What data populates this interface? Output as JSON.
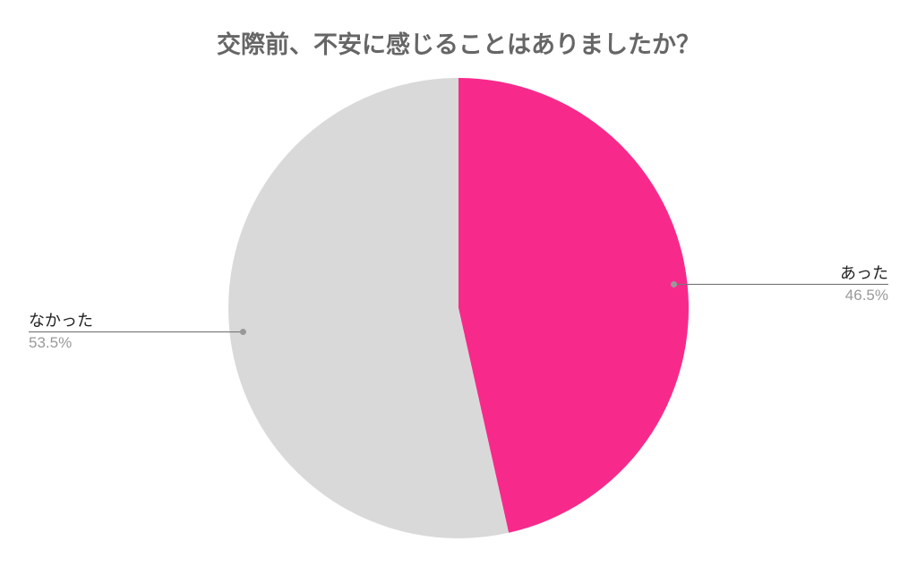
{
  "chart_data": {
    "type": "pie",
    "title": "交際前、不安に感じることはありましたか？",
    "categories": [
      "あった",
      "なかった"
    ],
    "values": [
      46.5,
      53.5
    ],
    "value_labels": [
      "46.5%",
      "53.5%"
    ],
    "colors": [
      "#F72A8C",
      "#D9D9D9"
    ],
    "start_angle": "top",
    "direction": "clockwise",
    "legend": "none (callout labels)"
  }
}
